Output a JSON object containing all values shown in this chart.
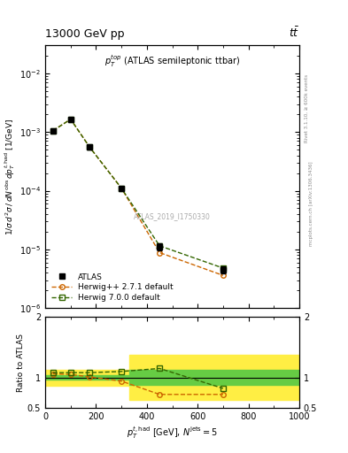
{
  "title_left": "13000 GeV pp",
  "title_right": "tt",
  "plot_label": "p_T^{top} (ATLAS semileptonic ttbar)",
  "watermark": "ATLAS_2019_I1750330",
  "rivet_label": "Rivet 3.1.10, ≥ 600k events",
  "mcplots_label": "mcplots.cern.ch [arXiv:1306.3436]",
  "atlas_x": [
    30,
    100,
    175,
    300,
    450,
    700
  ],
  "atlas_y": [
    0.00105,
    0.00165,
    0.00055,
    0.00011,
    1.1e-05,
    4.5e-06
  ],
  "atlas_yerr_lo": [
    8e-05,
    0.0001,
    4e-05,
    8e-06,
    1.5e-06,
    6e-07
  ],
  "atlas_yerr_hi": [
    8e-05,
    0.0001,
    4e-05,
    8e-06,
    1.5e-06,
    6e-07
  ],
  "herwig271_x": [
    30,
    100,
    175,
    300,
    450,
    700
  ],
  "herwig271_y": [
    0.00105,
    0.00165,
    0.00055,
    0.00011,
    8.8e-06,
    3.6e-06
  ],
  "herwig700_x": [
    30,
    100,
    175,
    300,
    450,
    700
  ],
  "herwig700_y": [
    0.00105,
    0.00165,
    0.00055,
    0.00011,
    1.15e-05,
    4.8e-06
  ],
  "ratio_herwig271": [
    1.06,
    1.05,
    1.01,
    0.94,
    0.72,
    0.72
  ],
  "ratio_herwig700": [
    1.08,
    1.08,
    1.08,
    1.1,
    1.15,
    0.82
  ],
  "ratio_x": [
    30,
    100,
    175,
    300,
    450,
    700
  ],
  "band1_x1": 0,
  "band1_x2": 330,
  "band1_green_lo": 0.96,
  "band1_green_hi": 1.04,
  "band1_yellow_lo": 0.87,
  "band1_yellow_hi": 1.13,
  "band2_x1": 330,
  "band2_x2": 1000,
  "band2_green_lo": 0.88,
  "band2_green_hi": 1.13,
  "band2_yellow_lo": 0.63,
  "band2_yellow_hi": 1.38,
  "color_atlas": "#000000",
  "color_herwig271": "#cc6600",
  "color_herwig700": "#336600",
  "color_green_band": "#66cc44",
  "color_yellow_band": "#ffee44",
  "xlim": [
    0,
    1000
  ],
  "ylim_main": [
    1e-06,
    0.03
  ],
  "ylim_ratio": [
    0.5,
    2.0
  ],
  "ratio_yticks": [
    0.5,
    1.0,
    2.0
  ],
  "ratio_yticklabels": [
    "0.5",
    "1",
    "2"
  ]
}
